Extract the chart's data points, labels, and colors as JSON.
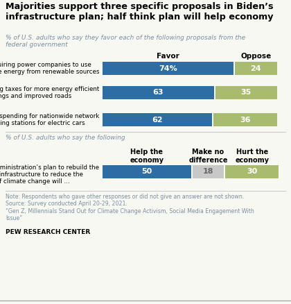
{
  "title": "Majorities support three specific proposals in Biden’s\ninfrastructure plan; half think plan will help economy",
  "subtitle1": "% of U.S. adults who say they favor each of the following proposals from the\nfederal government",
  "subtitle2": "% of U.S. adults who say the following",
  "col_header_favor": "Favor",
  "col_header_oppose": "Oppose",
  "col_header_help": "Help the\neconomy",
  "col_header_nodiff": "Make no\ndifference",
  "col_header_hurt": "Hurt the\neconomy",
  "bars_top": [
    {
      "label": "Requiring power companies to use\nmore energy from renewable sources",
      "favor": 74,
      "oppose": 24,
      "favor_pct": true
    },
    {
      "label": "Raising taxes for more energy efficient\nbuildings and improved roads",
      "favor": 63,
      "oppose": 35,
      "favor_pct": false
    },
    {
      "label": "Federal spending for nationwide network\nof charging stations for electric cars",
      "favor": 62,
      "oppose": 36,
      "favor_pct": false
    }
  ],
  "bar_bottom": {
    "label": "Biden administration’s plan to rebuild the\nnation’s infrastructure to reduce the\neffects of climate change will …",
    "help": 50,
    "no_diff": 18,
    "hurt": 30
  },
  "color_blue": "#2e6da4",
  "color_green": "#a9bb6e",
  "color_gray": "#c8c8c8",
  "note_text": "Note: Respondents who gave other responses or did not give an answer are not shown.\nSource: Survey conducted April 20-29, 2021.\n“Gen Z, Millennials Stand Out for Climate Change Activism, Social Media Engagement With\nIssue”",
  "source_bold": "PEW RESEARCH CENTER",
  "bg_color": "#f8f8f3",
  "title_color": "#000000",
  "subtitle_color": "#7a8fa0",
  "note_color": "#7a8fa0"
}
